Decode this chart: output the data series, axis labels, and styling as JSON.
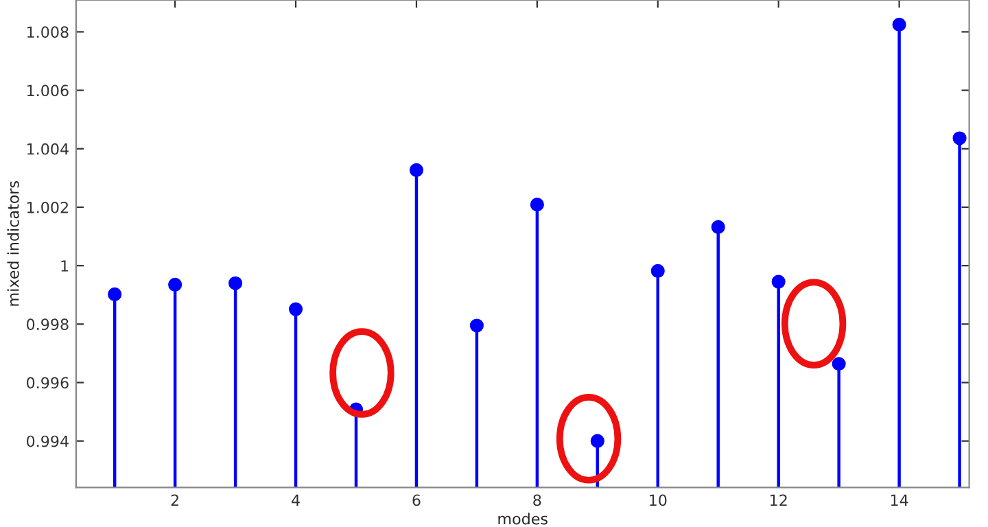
{
  "chart_data": {
    "type": "lollipop",
    "xlabel": "modes",
    "ylabel": "mixed indicators",
    "x": [
      1,
      2,
      3,
      4,
      5,
      6,
      7,
      8,
      9,
      10,
      11,
      12,
      13,
      14,
      15
    ],
    "series": [
      {
        "color": "#0000ff",
        "values": [
          0.99902,
          0.99935,
          0.9994,
          0.99851,
          0.99508,
          1.00327,
          0.99795,
          1.00209,
          0.994,
          0.99982,
          1.00132,
          0.99945,
          0.99664,
          1.00825,
          1.00436
        ]
      }
    ],
    "xlim": [
      0.36,
      15.16
    ],
    "ylim": [
      0.99241,
      1.00909
    ],
    "xticks": [
      2,
      4,
      6,
      8,
      10,
      12,
      14
    ],
    "yticks": [
      0.994,
      0.996,
      0.998,
      1,
      1.002,
      1.004,
      1.006,
      1.008
    ],
    "marker": "circle",
    "grid": false,
    "legend": false
  }
}
